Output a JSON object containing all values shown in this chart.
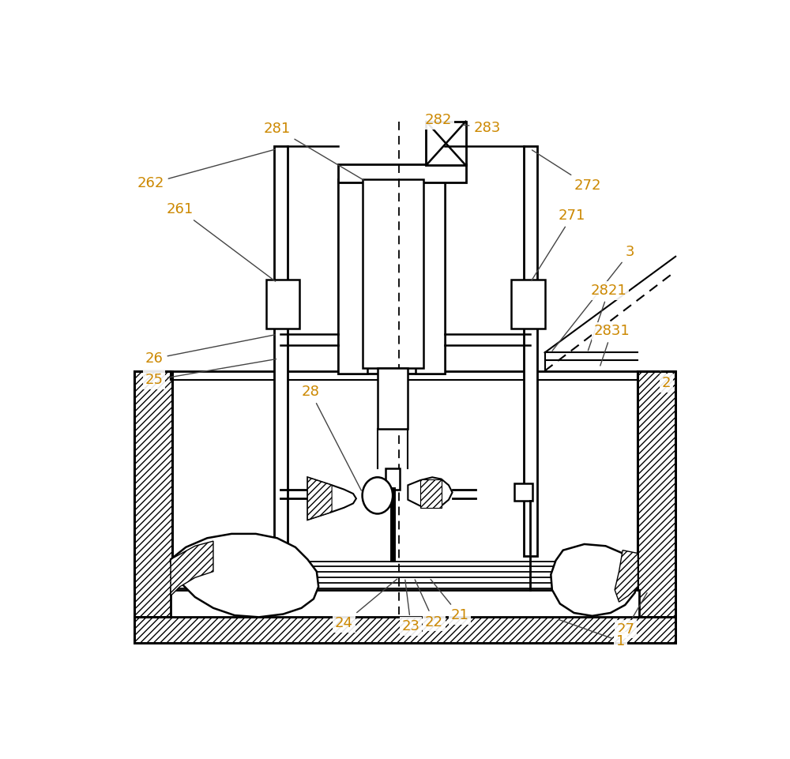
{
  "bg_color": "#ffffff",
  "label_color": "#cc8800",
  "figsize": [
    10.0,
    9.61
  ],
  "dpi": 100
}
